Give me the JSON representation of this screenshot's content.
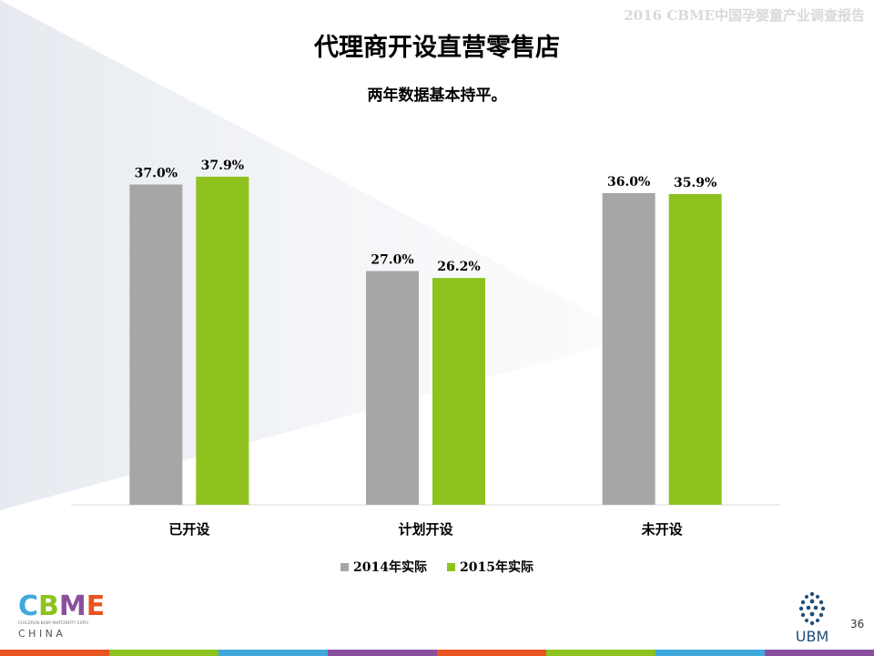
{
  "header": {
    "text": "2016 CBME中国孕婴童产业调查报告"
  },
  "page_number": "36",
  "logos": {
    "left": {
      "letters": "CBME",
      "tagline": "CHILDREN·BABY·MATERNITY EXPO",
      "word": "C H I N A"
    },
    "right": {
      "text": "UBM"
    }
  },
  "colors": {
    "series_2014": "#a6a6a6",
    "series_2015": "#8dc21f",
    "accent_bar": [
      "#e9531f",
      "#8dc21f",
      "#3fa9dc",
      "#8a4f9e",
      "#e9531f",
      "#8dc21f",
      "#3fa9dc",
      "#8a4f9e"
    ]
  },
  "chart_data": {
    "type": "bar",
    "title": "代理商开设直营零售店",
    "subtitle": "两年数据基本持平。",
    "categories": [
      "已开设",
      "计划开设",
      "未开设"
    ],
    "series": [
      {
        "name": "2014年实际",
        "values": [
          37.0,
          27.0,
          36.0
        ],
        "labels": [
          "37.0%",
          "27.0%",
          "36.0%"
        ]
      },
      {
        "name": "2015年实际",
        "values": [
          37.9,
          26.2,
          35.9
        ],
        "labels": [
          "37.9%",
          "26.2%",
          "35.9%"
        ]
      }
    ],
    "ylim": [
      0,
      40
    ],
    "legend_position": "bottom",
    "grid": false
  }
}
